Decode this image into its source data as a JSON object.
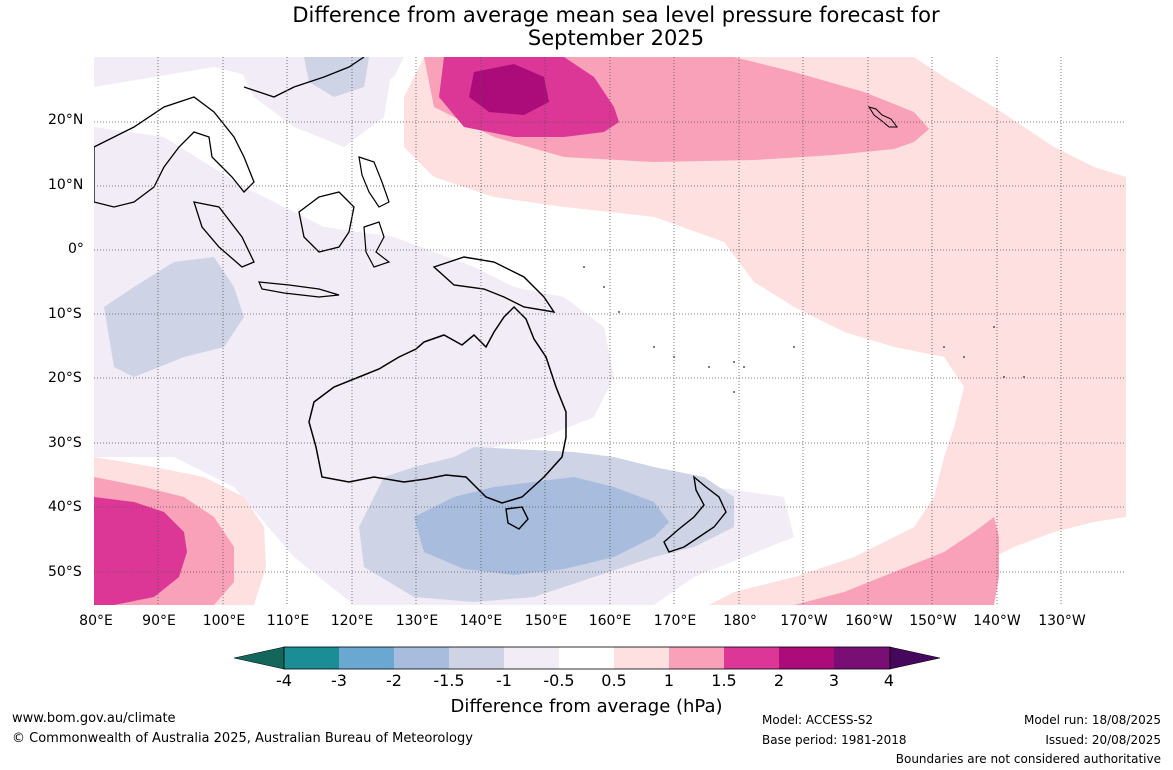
{
  "title": {
    "line1": "Difference from average mean sea level pressure forecast for",
    "line2": "September 2025"
  },
  "axes": {
    "lat_labels": [
      "20°N",
      "10°N",
      "0°",
      "10°S",
      "20°S",
      "30°S",
      "40°S",
      "50°S"
    ],
    "lon_labels": [
      "80°E",
      "90°E",
      "100°E",
      "110°E",
      "120°E",
      "130°E",
      "140°E",
      "150°E",
      "160°E",
      "170°E",
      "180°",
      "170°W",
      "160°W",
      "150°W",
      "140°W",
      "130°W"
    ]
  },
  "colorbar": {
    "ticks": [
      "-4",
      "-3",
      "-2",
      "-1.5",
      "-1",
      "-0.5",
      "0.5",
      "1",
      "1.5",
      "2",
      "3",
      "4"
    ],
    "colors": [
      "#12665a",
      "#1b8e95",
      "#6aa8d2",
      "#a8bcdd",
      "#cfd3e6",
      "#f1ecf5",
      "#ffffff",
      "#fde0df",
      "#f8a1b8",
      "#dc3797",
      "#ac0c7a",
      "#790f74",
      "#46085d"
    ],
    "label": "Difference from average (hPa)"
  },
  "footer": {
    "website": "www.bom.gov.au/climate",
    "copyright": "© Commonwealth of Australia 2025, Australian Bureau of Meteorology",
    "model": "Model: ACCESS-S2",
    "base_period": "Base period: 1981-2018",
    "model_run": "Model run: 18/08/2025",
    "issued": "Issued: 20/08/2025",
    "disclaimer": "Boundaries are not considered authoritative"
  }
}
